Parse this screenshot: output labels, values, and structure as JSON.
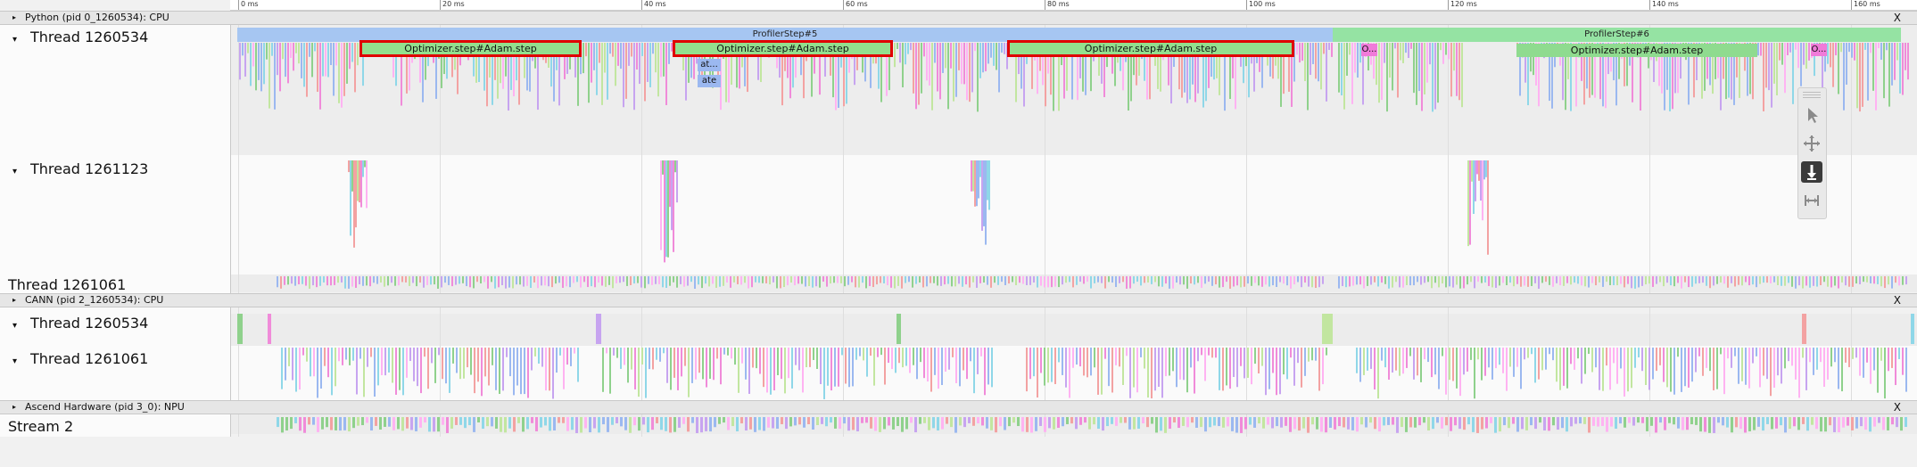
{
  "ruler": {
    "ticks": [
      "0 ms",
      "20 ms",
      "40 ms",
      "60 ms",
      "80 ms",
      "100 ms",
      "120 ms",
      "140 ms",
      "160 ms"
    ]
  },
  "sections": [
    {
      "name": "Python (pid 0_1260534): CPU",
      "close": "X"
    },
    {
      "name": "CANN (pid 2_1260534): CPU",
      "close": "X"
    },
    {
      "name": "Ascend Hardware (pid 3_0): NPU",
      "close": "X"
    }
  ],
  "threads": {
    "py_1260534": "Thread 1260534",
    "py_1261123": "Thread 1261123",
    "py_1261061": "Thread 1261061",
    "cann_1260534": "Thread 1260534",
    "cann_1261061": "Thread 1261061",
    "npu_stream": "Stream 2"
  },
  "profiler_steps": [
    "ProfilerStep#5",
    "ProfilerStep#6"
  ],
  "slices": {
    "optimizer": "Optimizer.step#Adam.step",
    "o_short": "O...",
    "at_short": "at...",
    "ate": "ate"
  },
  "toolbar": {
    "select_icon": "cursor-arrow-icon",
    "pan_icon": "pan-move-icon",
    "zoom_icon": "zoom-vertical-icon",
    "timing_icon": "timing-range-icon"
  },
  "colors": {
    "step5": "#a6c6f2",
    "step6": "#95e3a3",
    "optimizer_fill": "#93df8e",
    "highlight_outline": "#e00000",
    "palette": [
      "#8fd18c",
      "#9bb8f0",
      "#f08bd9",
      "#8fd7e8",
      "#c7a4f0",
      "#f3a2a2",
      "#ffb3f2",
      "#c2e6a0"
    ]
  }
}
